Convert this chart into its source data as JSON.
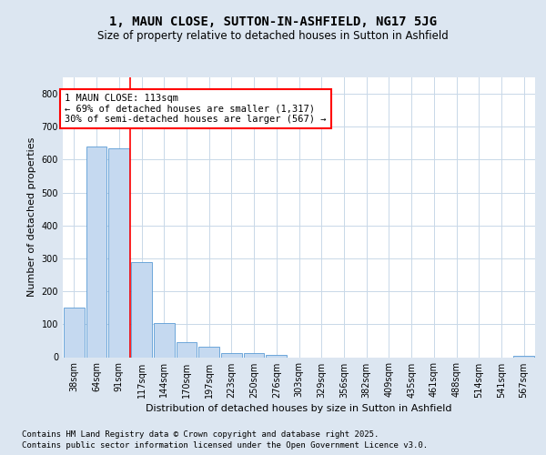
{
  "title": "1, MAUN CLOSE, SUTTON-IN-ASHFIELD, NG17 5JG",
  "subtitle": "Size of property relative to detached houses in Sutton in Ashfield",
  "xlabel": "Distribution of detached houses by size in Sutton in Ashfield",
  "ylabel": "Number of detached properties",
  "categories": [
    "38sqm",
    "64sqm",
    "91sqm",
    "117sqm",
    "144sqm",
    "170sqm",
    "197sqm",
    "223sqm",
    "250sqm",
    "276sqm",
    "303sqm",
    "329sqm",
    "356sqm",
    "382sqm",
    "409sqm",
    "435sqm",
    "461sqm",
    "488sqm",
    "514sqm",
    "541sqm",
    "567sqm"
  ],
  "values": [
    150,
    640,
    635,
    290,
    103,
    45,
    32,
    13,
    12,
    6,
    0,
    0,
    0,
    0,
    0,
    0,
    0,
    0,
    0,
    0,
    5
  ],
  "bar_color": "#c5d9f0",
  "bar_edge_color": "#5b9bd5",
  "grid_color": "#c8d8e8",
  "background_color": "#dce6f1",
  "plot_bg_color": "#ffffff",
  "vline_x_index": 3,
  "vline_color": "#ff0000",
  "annotation_text": "1 MAUN CLOSE: 113sqm\n← 69% of detached houses are smaller (1,317)\n30% of semi-detached houses are larger (567) →",
  "annotation_box_color": "#ffffff",
  "annotation_box_edge": "#ff0000",
  "ylim": [
    0,
    850
  ],
  "yticks": [
    0,
    100,
    200,
    300,
    400,
    500,
    600,
    700,
    800
  ],
  "footnote1": "Contains HM Land Registry data © Crown copyright and database right 2025.",
  "footnote2": "Contains public sector information licensed under the Open Government Licence v3.0.",
  "title_fontsize": 10,
  "subtitle_fontsize": 8.5,
  "label_fontsize": 8,
  "tick_fontsize": 7,
  "annot_fontsize": 7.5,
  "footnote_fontsize": 6.5
}
